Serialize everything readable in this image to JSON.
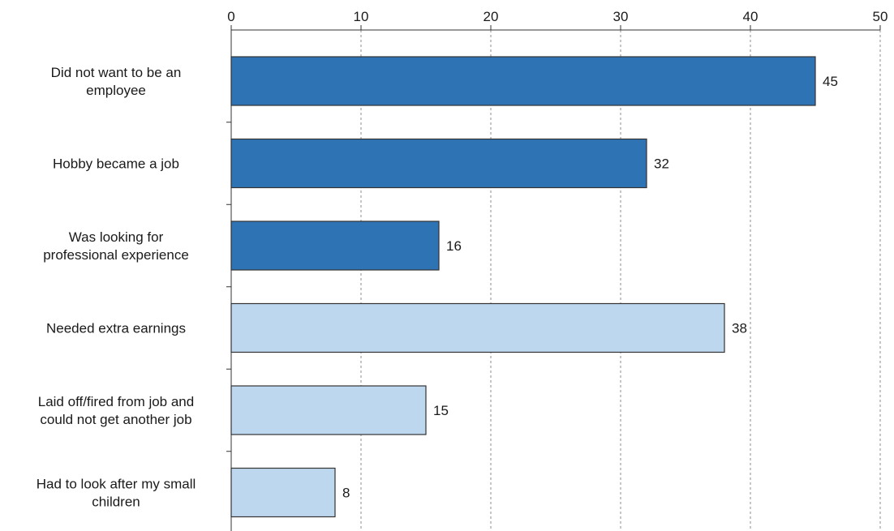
{
  "chart_data": {
    "type": "bar",
    "orientation": "horizontal",
    "title": "",
    "xlabel": "",
    "ylabel": "",
    "xlim": [
      0,
      50
    ],
    "ticks": [
      "0",
      "10",
      "20",
      "30",
      "40",
      "50"
    ],
    "tick_values": [
      0,
      10,
      20,
      30,
      40,
      50
    ],
    "axis_position": "top",
    "grid": "vertical dashed",
    "legend": "none",
    "categories": [
      [
        "Did not want to be an",
        "employee"
      ],
      [
        "Hobby became a job"
      ],
      [
        "Was looking for",
        "professional experience"
      ],
      [
        "Needed extra earnings"
      ],
      [
        "Laid off/fired from job and",
        "could not get another job"
      ],
      [
        "Had to look after my small",
        "children"
      ]
    ],
    "values": [
      45,
      32,
      16,
      38,
      15,
      8
    ],
    "value_labels": [
      "45",
      "32",
      "16",
      "38",
      "15",
      "8"
    ],
    "bar_colors": [
      "#2e74b5",
      "#2e74b5",
      "#2e74b5",
      "#bdd7ee",
      "#bdd7ee",
      "#bdd7ee"
    ]
  }
}
